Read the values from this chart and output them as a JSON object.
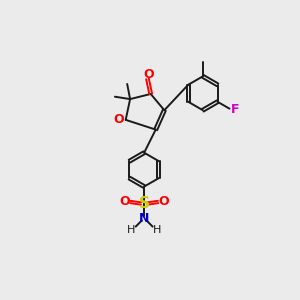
{
  "bg_color": "#ebebeb",
  "bond_color": "#1a1a1a",
  "atom_colors": {
    "O": "#ff0000",
    "F": "#cc00cc",
    "S": "#cccc00",
    "N": "#0000cc",
    "O_sulfone": "#ff0000"
  },
  "fig_size": [
    3.0,
    3.0
  ],
  "dpi": 100
}
